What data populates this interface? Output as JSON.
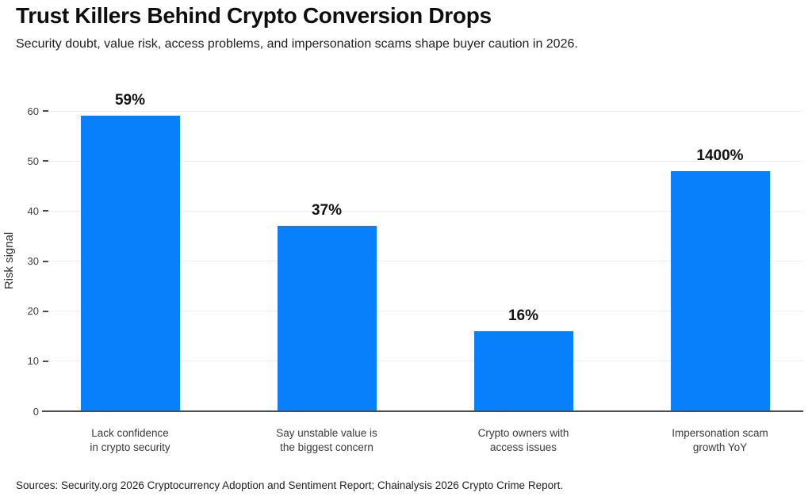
{
  "header": {
    "title": "Trust Killers Behind Crypto Conversion Drops",
    "subtitle": "Security doubt, value risk, access problems, and impersonation scams shape buyer caution in 2026."
  },
  "footer": {
    "source": "Sources: Security.org 2026 Cryptocurrency Adoption and Sentiment Report; Chainalysis 2026 Crypto Crime Report."
  },
  "chart_data": {
    "type": "bar",
    "title": "Trust Killers Behind Crypto Conversion Drops",
    "subtitle": "Security doubt, value risk, access problems, and impersonation scams shape buyer caution in 2026.",
    "xlabel": "",
    "ylabel": "Risk signal",
    "ylim": [
      0,
      60
    ],
    "yticks": [
      0,
      10,
      20,
      30,
      40,
      50,
      60
    ],
    "grid": "horizontal-light",
    "legend": "none",
    "bar_color": "#0880fb",
    "categories": [
      [
        "Lack confidence",
        "in crypto security"
      ],
      [
        "Say unstable value is",
        "the biggest concern"
      ],
      [
        "Crypto owners with",
        "access issues"
      ],
      [
        "Impersonation scam",
        "growth YoY"
      ]
    ],
    "values": [
      59,
      37,
      16,
      1400
    ],
    "data_labels": [
      "59%",
      "37%",
      "16%",
      "1400%"
    ],
    "plotted_bar_heights": [
      59,
      37,
      16,
      48
    ]
  }
}
